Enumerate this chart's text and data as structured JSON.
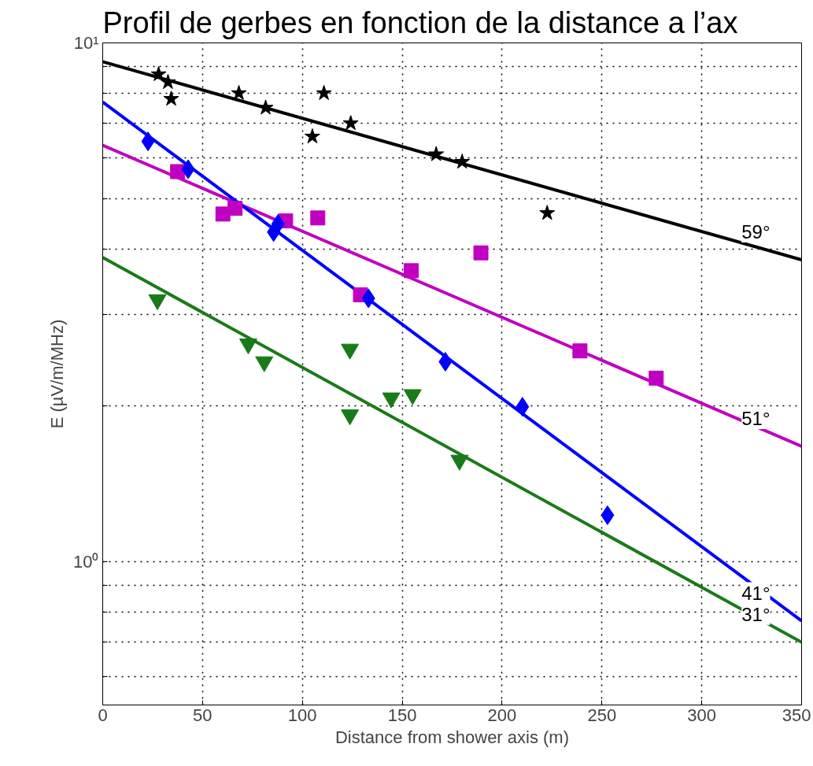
{
  "chart_data": {
    "type": "scatter",
    "title": "Profil de gerbes en fonction de la distance a l’ax",
    "xlabel": "Distance from shower axis (m)",
    "ylabel": "E (µV/m/MHz)",
    "log": "y",
    "grid": true,
    "xlim": [
      0,
      350
    ],
    "xticks": [
      0,
      50,
      100,
      150,
      200,
      250,
      300,
      350
    ],
    "ylim": [
      0.53,
      10
    ],
    "yticks": [
      {
        "value": 0.6,
        "label": null
      },
      {
        "value": 0.7,
        "label": null
      },
      {
        "value": 0.8,
        "label": null
      },
      {
        "value": 0.9,
        "label": null
      },
      {
        "value": 1,
        "label": "10⁰"
      },
      {
        "value": 2,
        "label": null
      },
      {
        "value": 3,
        "label": null
      },
      {
        "value": 4,
        "label": null
      },
      {
        "value": 5,
        "label": null
      },
      {
        "value": 6,
        "label": null
      },
      {
        "value": 7,
        "label": null
      },
      {
        "value": 8,
        "label": null
      },
      {
        "value": 9,
        "label": null
      },
      {
        "value": 10,
        "label": "10¹"
      }
    ],
    "series": [
      {
        "type": "line",
        "name": "59°",
        "color": "#000000",
        "x": [
          0,
          350
        ],
        "values": [
          9.2,
          3.82
        ],
        "line_style": "solid",
        "marker": "none"
      },
      {
        "type": "line",
        "name": "51°",
        "color": "#c000c0",
        "x": [
          0,
          350
        ],
        "values": [
          6.35,
          1.67
        ],
        "line_style": "solid",
        "marker": "none"
      },
      {
        "type": "line",
        "name": "41°",
        "color": "#0000ff",
        "x": [
          0,
          350
        ],
        "values": [
          7.69,
          0.77
        ],
        "line_style": "solid",
        "marker": "none"
      },
      {
        "type": "line",
        "name": "31°",
        "color": "#1a7a1a",
        "x": [
          0,
          350
        ],
        "values": [
          3.86,
          0.7
        ],
        "line_style": "solid",
        "marker": "none"
      },
      {
        "color": "#000000",
        "marker": "star",
        "x": [
          28,
          32.7,
          34.3,
          68.2,
          81.6,
          105,
          110.8,
          124.2,
          167,
          180,
          222.6
        ],
        "values": [
          8.7,
          8.4,
          7.8,
          8.0,
          7.5,
          6.6,
          8.0,
          7.0,
          6.1,
          5.9,
          4.7
        ]
      },
      {
        "color": "#c000c0",
        "marker": "square",
        "x": [
          37.5,
          60.2,
          66.3,
          91.6,
          107.7,
          129.1,
          154.5,
          189.4,
          239,
          277.2
        ],
        "values": [
          5.65,
          4.68,
          4.8,
          4.54,
          4.6,
          3.27,
          3.64,
          3.94,
          2.55,
          2.26
        ]
      },
      {
        "color": "#0000ff",
        "marker": "diamond",
        "x": [
          22.7,
          42.8,
          85.6,
          87.8,
          133.1,
          171.6,
          210.2,
          252.8
        ],
        "values": [
          6.46,
          5.71,
          4.32,
          4.48,
          3.22,
          2.43,
          1.99,
          1.23
        ]
      },
      {
        "color": "#1a7a1a",
        "marker": "triangle",
        "x": [
          27.4,
          72.9,
          80.9,
          123.8,
          123.8,
          144.5,
          155.2,
          178.7
        ],
        "values": [
          3.2,
          2.63,
          2.43,
          2.57,
          1.92,
          2.07,
          2.1,
          1.57
        ]
      }
    ]
  }
}
